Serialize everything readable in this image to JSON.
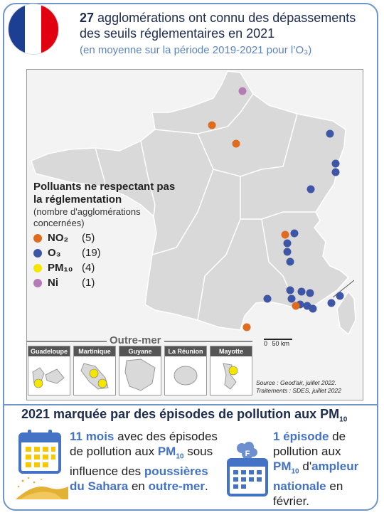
{
  "header": {
    "title_bold": "27",
    "title_rest": "agglomérations ont connu des dépassements des seuils réglementaires en 2021",
    "subtitle": "(en moyenne sur la période 2019-2021 pour l’O₃)"
  },
  "legend": {
    "title": "Polluants ne respectant pas la réglementation",
    "subtitle": "(nombre d'agglomérations concernées)",
    "items": [
      {
        "code": "NO₂",
        "count": "(5)",
        "color": "#e06b1f"
      },
      {
        "code": "O₃",
        "count": "(19)",
        "color": "#3f56a6"
      },
      {
        "code": "PM₁₀",
        "count": "(4)",
        "color": "#f5e600"
      },
      {
        "code": "Ni",
        "count": "(1)",
        "color": "#b57bb5"
      }
    ]
  },
  "outremer": {
    "label": "Outre-mer",
    "territories": [
      "Guadeloupe",
      "Martinique",
      "Guyane",
      "La Réunion",
      "Mayotte"
    ]
  },
  "scale": {
    "zero": "0",
    "value": "50 km"
  },
  "source": {
    "line1": "Source : Geod'air, juillet 2022.",
    "line2": "Traitements : SDES, juillet 2022"
  },
  "section2": {
    "title_prefix": "2021 marquée par des épisodes de pollution aux PM",
    "title_sub": "10"
  },
  "stat1": {
    "value": "11 mois",
    "t1": "avec des épisodes de pollution aux",
    "pm": "PM",
    "pm_sub": "10",
    "t2": "sous influence des",
    "highlight": "poussières du Sahara",
    "t3": "en",
    "highlight2": "outre-mer",
    "t4": "."
  },
  "stat2": {
    "value": "1 épisode",
    "t1": "de pollution aux",
    "pm": "PM",
    "pm_sub": "10",
    "t2": "d'",
    "highlight": "ampleur nationale",
    "t3": "en février."
  },
  "colors": {
    "accent": "#6f95c9",
    "blue": "#4472c4",
    "no2": "#e06b1f",
    "o3": "#3f56a6",
    "pm10": "#f5e600",
    "ni": "#b57bb5"
  }
}
